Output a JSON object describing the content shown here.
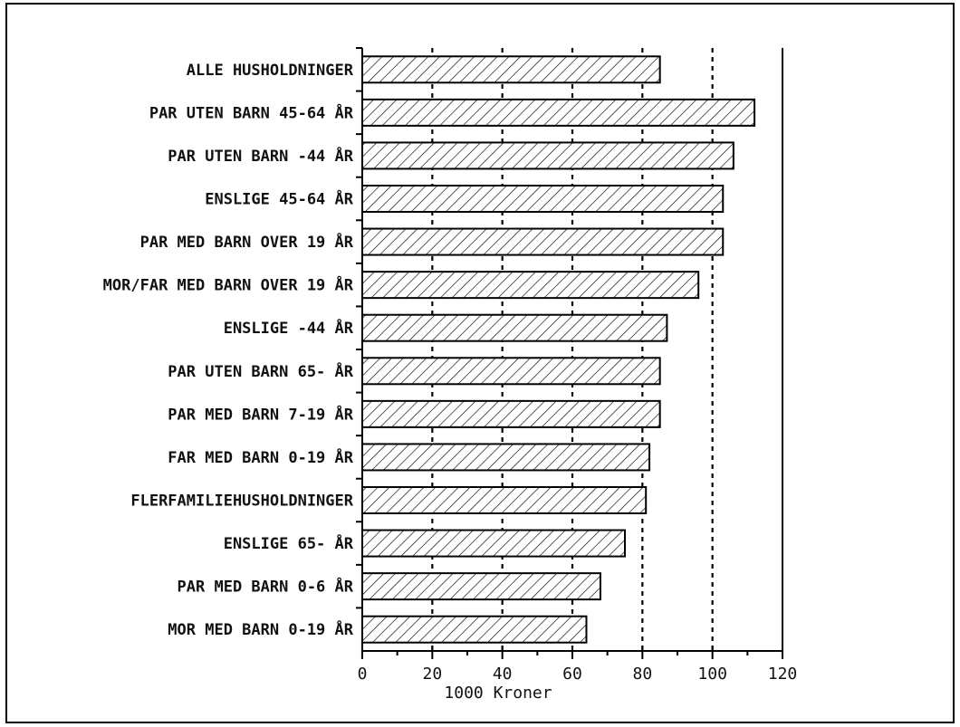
{
  "chart_data": {
    "type": "bar",
    "orientation": "horizontal",
    "categories": [
      "ALLE HUSHOLDNINGER",
      "PAR UTEN BARN 45-64 ÅR",
      "PAR UTEN BARN -44 ÅR",
      "ENSLIGE 45-64 ÅR",
      "PAR MED BARN OVER 19 ÅR",
      "MOR/FAR MED BARN OVER 19 ÅR",
      "ENSLIGE -44 ÅR",
      "PAR UTEN BARN 65- ÅR",
      "PAR MED BARN 7-19 ÅR",
      "FAR MED BARN 0-19 ÅR",
      "FLERFAMILIEHUSHOLDNINGER",
      "ENSLIGE 65- ÅR",
      "PAR MED BARN 0-6 ÅR",
      "MOR MED BARN 0-19 ÅR"
    ],
    "values": [
      85,
      112,
      106,
      103,
      103,
      96,
      87,
      85,
      85,
      82,
      81,
      75,
      68,
      64
    ],
    "xlabel": "1000 Kroner",
    "ylabel": "",
    "title": "",
    "xlim": [
      0,
      120
    ],
    "xticks": [
      0,
      20,
      40,
      60,
      80,
      100,
      120
    ],
    "gridlines_x": [
      20,
      40,
      60,
      80,
      100
    ],
    "grid": "vertical dashed",
    "bar_fill": "diagonal hatch",
    "colors": {
      "bar_stroke": "#000000",
      "bar_fill": "#ffffff",
      "grid": "#000000"
    }
  }
}
